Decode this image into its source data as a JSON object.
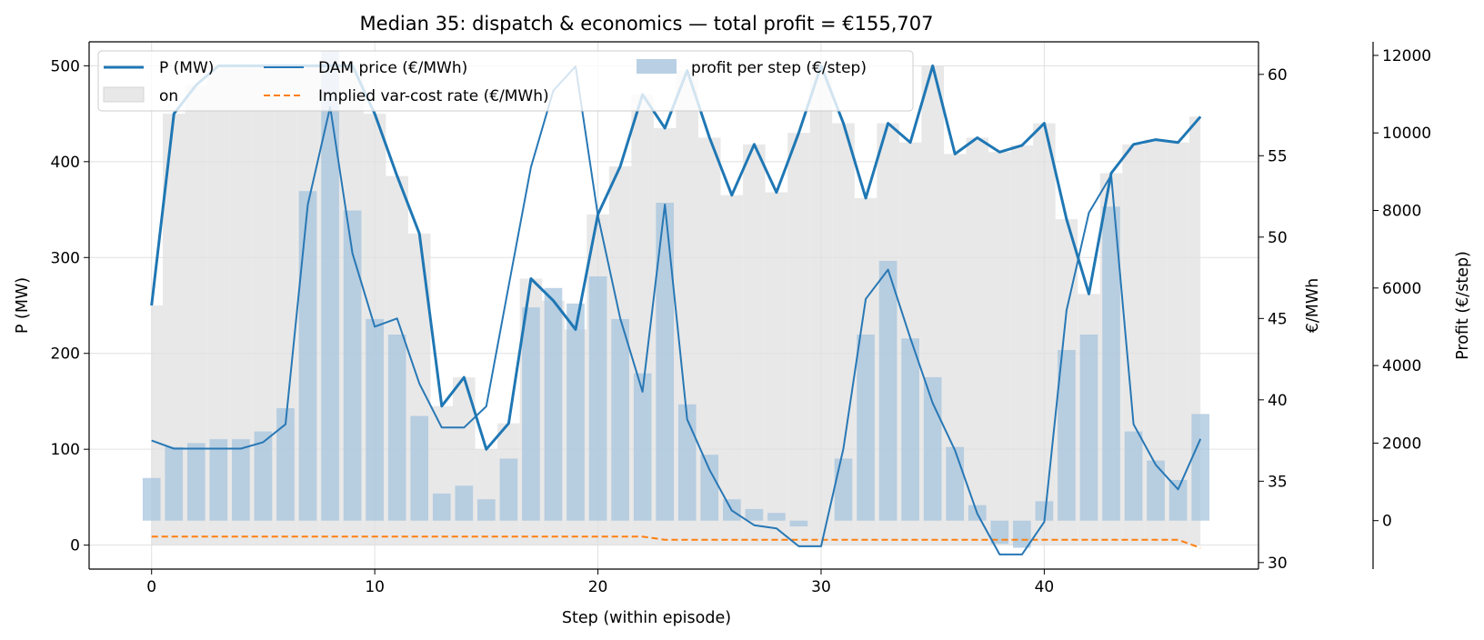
{
  "chart_data": {
    "type": "line",
    "title": "Median 35: dispatch & economics — total profit = €155,707",
    "xlabel": "Step (within episode)",
    "ylabel_left": "P (MW)",
    "ylabel_right": "€/MWh",
    "ylabel_far_right": "Profit (€/step)",
    "xlim": [
      -2.8,
      49.6
    ],
    "ylim_left": [
      -25,
      525
    ],
    "ylim_price": [
      29.6,
      62
    ],
    "ylim_profit": [
      -1250,
      12350
    ],
    "x_ticks": [
      0,
      10,
      20,
      30,
      40
    ],
    "left_ticks": [
      0,
      100,
      200,
      300,
      400,
      500
    ],
    "price_ticks": [
      30,
      35,
      40,
      45,
      50,
      55,
      60
    ],
    "profit_ticks": [
      0,
      2000,
      4000,
      6000,
      8000,
      10000,
      12000
    ],
    "grid": true,
    "legend_position": "top-left",
    "legend": {
      "p": "P (MW)",
      "on": "on",
      "price": "DAM price (€/MWh)",
      "varcost": "Implied var-cost rate (€/MWh)",
      "profit": "profit per step (€/step)"
    },
    "colors": {
      "p": "#1f77b4",
      "price": "#2878b5",
      "varcost": "#ff7f0e",
      "profit": "#a7c4dd",
      "on": "#e8e8e8"
    },
    "x": [
      0,
      1,
      2,
      3,
      4,
      5,
      6,
      7,
      8,
      9,
      10,
      11,
      12,
      13,
      14,
      15,
      16,
      17,
      18,
      19,
      20,
      21,
      22,
      23,
      24,
      25,
      26,
      27,
      28,
      29,
      30,
      31,
      32,
      33,
      34,
      35,
      36,
      37,
      38,
      39,
      40,
      41,
      42,
      43,
      44,
      45,
      46,
      47
    ],
    "on": [
      1,
      1,
      1,
      1,
      1,
      1,
      1,
      1,
      1,
      1,
      1,
      1,
      1,
      1,
      1,
      1,
      1,
      1,
      1,
      1,
      1,
      1,
      1,
      1,
      1,
      1,
      1,
      1,
      1,
      1,
      1,
      1,
      1,
      1,
      1,
      1,
      1,
      1,
      1,
      1,
      1,
      1,
      1,
      1,
      1,
      1,
      1,
      1
    ],
    "series": [
      {
        "name": "P (MW)",
        "axis": "left",
        "values": [
          250,
          450,
          480,
          500,
          500,
          500,
          500,
          500,
          500,
          500,
          450,
          385,
          325,
          145,
          175,
          100,
          127,
          278,
          255,
          225,
          345,
          395,
          470,
          435,
          495,
          425,
          365,
          418,
          368,
          430,
          500,
          440,
          362,
          440,
          420,
          500,
          408,
          425,
          410,
          417,
          440,
          340,
          262,
          388,
          418,
          423,
          420,
          447
        ]
      },
      {
        "name": "DAM price (€/MWh)",
        "axis": "right",
        "values": [
          37.5,
          37.0,
          37.0,
          37.0,
          37.0,
          37.4,
          38.5,
          52.0,
          58.0,
          49.0,
          44.5,
          45.0,
          41.0,
          38.3,
          38.3,
          39.6,
          47.0,
          54.3,
          59.0,
          60.5,
          51.3,
          45.0,
          40.5,
          52.0,
          38.8,
          35.7,
          33.2,
          32.3,
          32.1,
          31.0,
          31.0,
          37.0,
          46.2,
          48.0,
          43.8,
          39.8,
          36.9,
          33.0,
          30.5,
          30.5,
          32.5,
          45.5,
          51.5,
          53.8,
          38.5,
          36.0,
          34.5,
          37.6
        ]
      },
      {
        "name": "Implied var-cost rate (€/MWh)",
        "axis": "right",
        "values": [
          31.6,
          31.6,
          31.6,
          31.6,
          31.6,
          31.6,
          31.6,
          31.6,
          31.6,
          31.6,
          31.6,
          31.6,
          31.6,
          31.6,
          31.6,
          31.6,
          31.6,
          31.6,
          31.6,
          31.6,
          31.6,
          31.6,
          31.6,
          31.4,
          31.4,
          31.4,
          31.4,
          31.4,
          31.4,
          31.4,
          31.4,
          31.4,
          31.4,
          31.4,
          31.4,
          31.4,
          31.4,
          31.4,
          31.4,
          31.4,
          31.4,
          31.4,
          31.4,
          31.4,
          31.4,
          31.4,
          31.4,
          30.9
        ]
      },
      {
        "name": "profit per step (€/step)",
        "type": "bar",
        "axis": "profit",
        "values": [
          1100,
          1900,
          2000,
          2100,
          2100,
          2300,
          2900,
          8500,
          12100,
          8000,
          5200,
          4800,
          2700,
          700,
          900,
          550,
          1600,
          5500,
          6000,
          5600,
          6300,
          5200,
          3800,
          8200,
          3000,
          1700,
          550,
          300,
          200,
          -150,
          0,
          1600,
          4800,
          6700,
          4700,
          3700,
          1900,
          400,
          -600,
          -700,
          500,
          4400,
          4800,
          8100,
          2300,
          1550,
          1050,
          2750
        ]
      }
    ]
  }
}
